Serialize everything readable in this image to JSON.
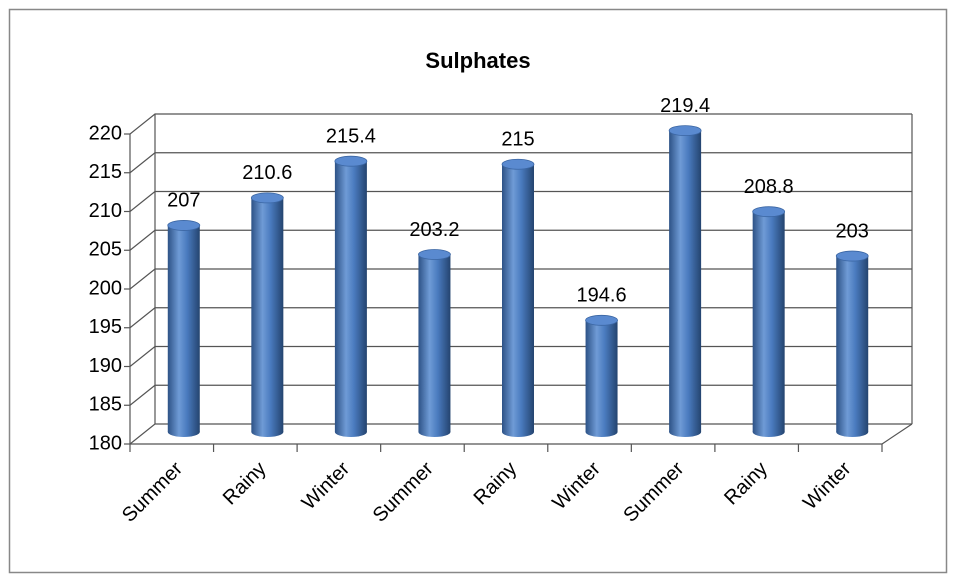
{
  "chart_data": {
    "type": "bar",
    "title": "Sulphates",
    "categories": [
      "Summer",
      "Rainy",
      "Winter",
      "Summer",
      "Rainy",
      "Winter",
      "Summer",
      "Rainy",
      "Winter"
    ],
    "values": [
      207,
      210.6,
      215.4,
      203.2,
      215,
      194.6,
      219.4,
      208.8,
      203
    ],
    "color": "#4f81bd",
    "ylim": [
      180,
      220
    ],
    "yticks": [
      180,
      185,
      190,
      195,
      200,
      205,
      210,
      215,
      220
    ],
    "grid": true
  }
}
